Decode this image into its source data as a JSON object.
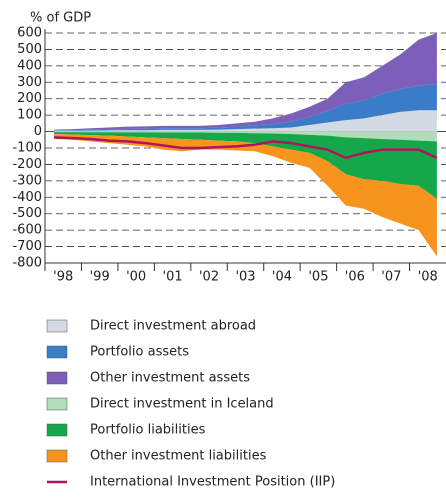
{
  "chart_data": {
    "type": "stacked-area",
    "y_label": "% of GDP",
    "categories": [
      "'98",
      null,
      "'99",
      null,
      "'00",
      null,
      "'01",
      null,
      "'02",
      null,
      "'03",
      null,
      "'04",
      null,
      "'05",
      null,
      "'06",
      null,
      "'07",
      null,
      "'08",
      null
    ],
    "ylim": [
      -800,
      600
    ],
    "yticks": [
      -800,
      -700,
      -600,
      -500,
      -400,
      -300,
      -200,
      -100,
      0,
      100,
      200,
      300,
      400,
      500,
      600
    ],
    "grid": true,
    "series": [
      {
        "name": "Direct investment abroad",
        "color": "#d3dae3",
        "values": [
          5,
          5,
          6,
          7,
          8,
          8,
          10,
          10,
          10,
          12,
          15,
          18,
          20,
          25,
          40,
          55,
          70,
          80,
          100,
          120,
          130,
          130
        ]
      },
      {
        "name": "Portfolio assets",
        "color": "#3b7cc9",
        "values": [
          3,
          4,
          5,
          6,
          8,
          9,
          10,
          10,
          10,
          12,
          15,
          20,
          25,
          35,
          50,
          70,
          100,
          110,
          130,
          140,
          150,
          160
        ]
      },
      {
        "name": "Other investment assets",
        "color": "#7b5fb9",
        "values": [
          4,
          6,
          9,
          12,
          14,
          15,
          15,
          15,
          15,
          16,
          20,
          22,
          35,
          50,
          60,
          75,
          130,
          140,
          170,
          210,
          280,
          310
        ]
      },
      {
        "name": "Direct investment in Iceland",
        "color": "#b2dcba",
        "values": [
          -3,
          -3,
          -4,
          -4,
          -5,
          -5,
          -6,
          -6,
          -6,
          -7,
          -8,
          -10,
          -12,
          -15,
          -20,
          -25,
          -35,
          -40,
          -45,
          -50,
          -55,
          -60
        ]
      },
      {
        "name": "Portfolio liabilities",
        "color": "#15a84b",
        "values": [
          -12,
          -15,
          -18,
          -21,
          -25,
          -30,
          -34,
          -39,
          -44,
          -48,
          -52,
          -60,
          -78,
          -95,
          -110,
          -155,
          -225,
          -250,
          -255,
          -270,
          -275,
          -350
        ]
      },
      {
        "name": "Other investment liabilities",
        "color": "#f7941d",
        "values": [
          -30,
          -32,
          -38,
          -45,
          -50,
          -55,
          -70,
          -75,
          -60,
          -55,
          -55,
          -50,
          -60,
          -80,
          -90,
          -150,
          -190,
          -180,
          -220,
          -240,
          -270,
          -350
        ]
      },
      {
        "name": "International Investment Position (IIP)",
        "color": "#b0155b",
        "type": "line",
        "values": [
          -35,
          -40,
          -45,
          -55,
          -60,
          -70,
          -85,
          -100,
          -100,
          -95,
          -90,
          -80,
          -60,
          -70,
          -90,
          -110,
          -160,
          -130,
          -110,
          -110,
          -110,
          -160
        ]
      }
    ]
  }
}
